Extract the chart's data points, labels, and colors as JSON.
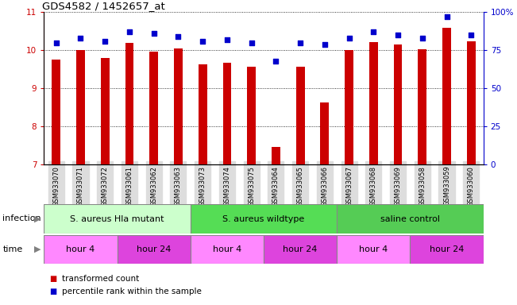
{
  "title": "GDS4582 / 1452657_at",
  "samples": [
    "GSM933070",
    "GSM933071",
    "GSM933072",
    "GSM933061",
    "GSM933062",
    "GSM933063",
    "GSM933073",
    "GSM933074",
    "GSM933075",
    "GSM933064",
    "GSM933065",
    "GSM933066",
    "GSM933067",
    "GSM933068",
    "GSM933069",
    "GSM933058",
    "GSM933059",
    "GSM933060"
  ],
  "transformed_count": [
    9.75,
    10.0,
    9.8,
    10.2,
    9.97,
    10.04,
    9.63,
    9.68,
    9.57,
    7.47,
    9.58,
    8.64,
    10.0,
    10.22,
    10.16,
    10.02,
    10.6,
    10.24
  ],
  "percentile_rank": [
    80,
    83,
    81,
    87,
    86,
    84,
    81,
    82,
    80,
    68,
    80,
    79,
    83,
    87,
    85,
    83,
    97,
    85
  ],
  "ylim_left": [
    7,
    11
  ],
  "ylim_right": [
    0,
    100
  ],
  "yticks_left": [
    7,
    8,
    9,
    10,
    11
  ],
  "yticks_right": [
    0,
    25,
    50,
    75,
    100
  ],
  "bar_color": "#cc0000",
  "dot_color": "#0000cc",
  "bg_color": "#ffffff",
  "infection_groups": [
    {
      "label": "S. aureus Hla mutant",
      "start": 0,
      "end": 5,
      "color": "#ccffcc"
    },
    {
      "label": "S. aureus wildtype",
      "start": 6,
      "end": 11,
      "color": "#55dd55"
    },
    {
      "label": "saline control",
      "start": 12,
      "end": 17,
      "color": "#55cc55"
    }
  ],
  "time_groups": [
    {
      "label": "hour 4",
      "start": 0,
      "end": 2,
      "color": "#ff88ff"
    },
    {
      "label": "hour 24",
      "start": 3,
      "end": 5,
      "color": "#dd44dd"
    },
    {
      "label": "hour 4",
      "start": 6,
      "end": 8,
      "color": "#ff88ff"
    },
    {
      "label": "hour 24",
      "start": 9,
      "end": 11,
      "color": "#dd44dd"
    },
    {
      "label": "hour 4",
      "start": 12,
      "end": 14,
      "color": "#ff88ff"
    },
    {
      "label": "hour 24",
      "start": 15,
      "end": 17,
      "color": "#dd44dd"
    }
  ],
  "xtick_bg": "#dddddd",
  "legend_items": [
    {
      "label": "transformed count",
      "color": "#cc0000"
    },
    {
      "label": "percentile rank within the sample",
      "color": "#0000cc"
    }
  ],
  "figsize": [
    6.51,
    3.84
  ],
  "dpi": 100
}
